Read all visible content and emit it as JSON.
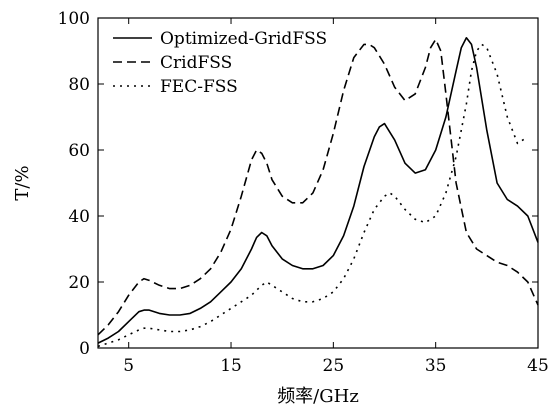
{
  "chart_data": {
    "type": "line",
    "title": "",
    "xlabel": "频率/GHz",
    "ylabel": "T/%",
    "xlim": [
      2,
      45
    ],
    "ylim": [
      0,
      100
    ],
    "xticks": [
      5,
      15,
      25,
      35,
      45
    ],
    "yticks": [
      0,
      20,
      40,
      60,
      80,
      100
    ],
    "grid": false,
    "legend_position": "top-left",
    "series": [
      {
        "name": "Optimized-GridFSS",
        "style": "solid",
        "color": "#000000",
        "x": [
          2,
          3,
          4,
          5,
          6,
          6.5,
          7,
          8,
          9,
          10,
          11,
          12,
          13,
          14,
          15,
          16,
          17,
          17.5,
          18,
          18.5,
          19,
          20,
          21,
          22,
          23,
          24,
          25,
          26,
          27,
          28,
          29,
          29.5,
          30,
          31,
          32,
          33,
          34,
          35,
          36,
          37,
          37.5,
          38,
          38.5,
          39,
          40,
          41,
          42,
          43,
          44,
          45
        ],
        "y": [
          1.5,
          3,
          5,
          8,
          11,
          11.5,
          11.5,
          10.5,
          10,
          10,
          10.5,
          12,
          14,
          17,
          20,
          24,
          30,
          33.5,
          35,
          34,
          31,
          27,
          25,
          24,
          24,
          25,
          28,
          34,
          43,
          55,
          64,
          67,
          68,
          63,
          56,
          53,
          54,
          60,
          70,
          84,
          91,
          94,
          92,
          85,
          66,
          50,
          45,
          43,
          40,
          32
        ]
      },
      {
        "name": "CridFSS",
        "style": "dashed",
        "color": "#000000",
        "x": [
          2,
          3,
          4,
          5,
          6,
          6.5,
          7,
          8,
          9,
          10,
          11,
          12,
          13,
          14,
          15,
          16,
          17,
          17.5,
          18,
          18.5,
          19,
          20,
          21,
          22,
          23,
          24,
          25,
          26,
          27,
          28,
          28.5,
          29,
          30,
          31,
          32,
          33,
          34,
          34.5,
          35,
          35.5,
          36,
          37,
          38,
          39,
          40,
          41,
          42,
          43,
          44,
          45
        ],
        "y": [
          4,
          7,
          11,
          16,
          20,
          21,
          20.5,
          19,
          18,
          18,
          19,
          21,
          24,
          29,
          36,
          46,
          57,
          60,
          59,
          56,
          51,
          46,
          44,
          44,
          47,
          54,
          65,
          78,
          88,
          92,
          92,
          91,
          86,
          79,
          75,
          77,
          85,
          91,
          93.5,
          90,
          77,
          50,
          35,
          30,
          28,
          26,
          25,
          23,
          20,
          13
        ]
      },
      {
        "name": "FEC-FSS",
        "style": "dotted",
        "color": "#000000",
        "x": [
          2,
          3,
          4,
          5,
          6,
          6.5,
          7,
          8,
          9,
          10,
          11,
          12,
          13,
          14,
          15,
          16,
          17,
          18,
          18.5,
          19,
          20,
          21,
          22,
          23,
          24,
          25,
          26,
          27,
          28,
          29,
          30,
          30.5,
          31,
          32,
          33,
          34,
          35,
          36,
          37,
          38,
          38.5,
          39,
          39.5,
          40,
          41,
          42,
          43,
          44
        ],
        "y": [
          0.5,
          1.5,
          2.5,
          4,
          5.5,
          6,
          6,
          5.5,
          5,
          5,
          5.5,
          6.5,
          8,
          10,
          12,
          14,
          16,
          19,
          20,
          19,
          17,
          15,
          14,
          14,
          15,
          17,
          21,
          27,
          35,
          42,
          46,
          47,
          46,
          42,
          39,
          38,
          40,
          47,
          58,
          74,
          84,
          90,
          92,
          91,
          83,
          70,
          62,
          64
        ]
      }
    ]
  }
}
